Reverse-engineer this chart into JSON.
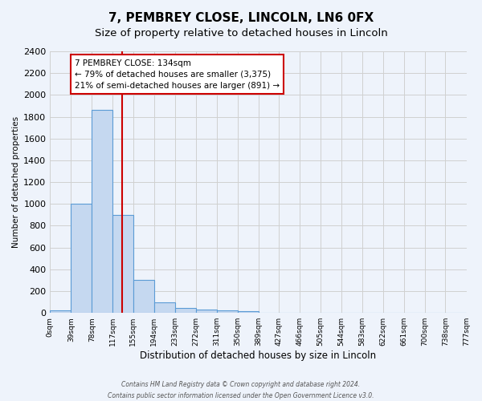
{
  "title": "7, PEMBREY CLOSE, LINCOLN, LN6 0FX",
  "subtitle": "Size of property relative to detached houses in Lincoln",
  "xlabel": "Distribution of detached houses by size in Lincoln",
  "ylabel": "Number of detached properties",
  "bin_labels": [
    "0sqm",
    "39sqm",
    "78sqm",
    "117sqm",
    "155sqm",
    "194sqm",
    "233sqm",
    "272sqm",
    "311sqm",
    "350sqm",
    "389sqm",
    "427sqm",
    "466sqm",
    "505sqm",
    "544sqm",
    "583sqm",
    "622sqm",
    "661sqm",
    "700sqm",
    "738sqm",
    "777sqm"
  ],
  "bin_edges": [
    0,
    39,
    78,
    117,
    155,
    194,
    233,
    272,
    311,
    350,
    389,
    427,
    466,
    505,
    544,
    583,
    622,
    661,
    700,
    738,
    777
  ],
  "bar_heights": [
    25,
    1000,
    1860,
    900,
    300,
    100,
    45,
    30,
    20,
    15,
    0,
    0,
    0,
    0,
    0,
    0,
    0,
    0,
    0,
    0
  ],
  "bar_color": "#c5d8f0",
  "bar_edge_color": "#5b9bd5",
  "grid_color": "#d0d0d0",
  "background_color": "#eef3fb",
  "vline_x": 134,
  "vline_color": "#cc0000",
  "annotation_line1": "7 PEMBREY CLOSE: 134sqm",
  "annotation_line2": "← 79% of detached houses are smaller (3,375)",
  "annotation_line3": "21% of semi-detached houses are larger (891) →",
  "annotation_box_color": "#ffffff",
  "annotation_box_edge_color": "#cc0000",
  "ylim": [
    0,
    2400
  ],
  "yticks": [
    0,
    200,
    400,
    600,
    800,
    1000,
    1200,
    1400,
    1600,
    1800,
    2000,
    2200,
    2400
  ],
  "footer_line1": "Contains HM Land Registry data © Crown copyright and database right 2024.",
  "footer_line2": "Contains public sector information licensed under the Open Government Licence v3.0.",
  "title_fontsize": 11,
  "subtitle_fontsize": 9.5
}
